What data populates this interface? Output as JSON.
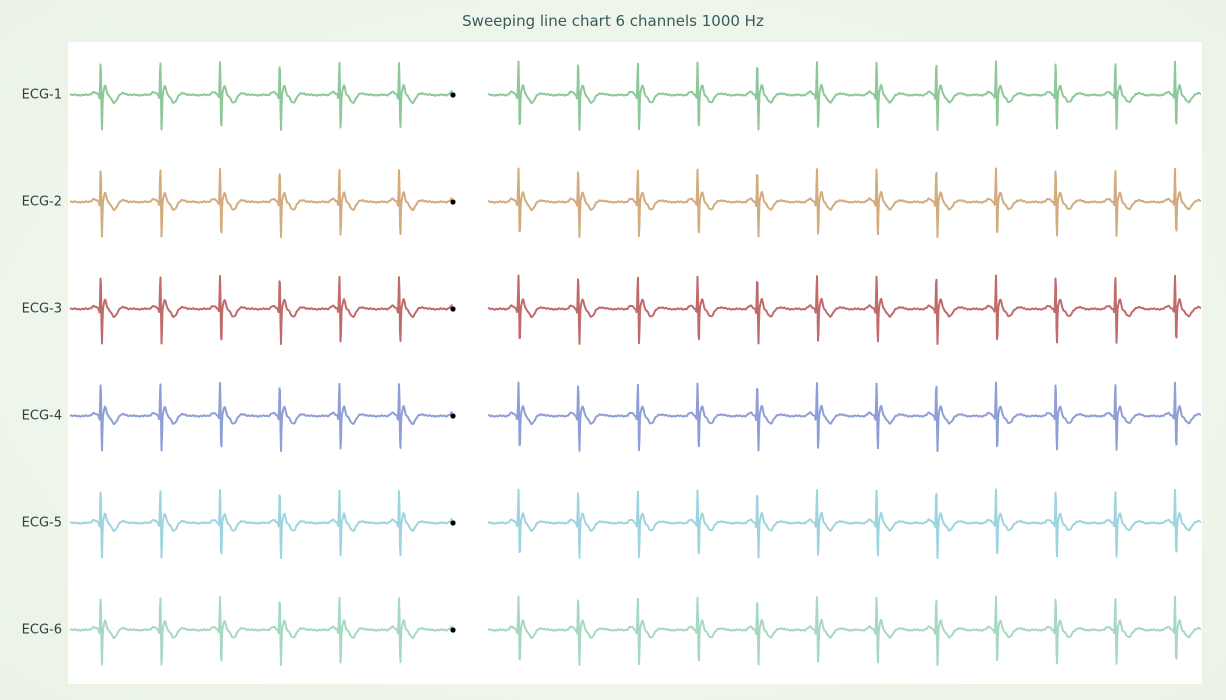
{
  "title": "Sweeping line chart 6 channels 1000 Hz",
  "chart_data": {
    "type": "line",
    "title": "Sweeping line chart 6 channels 1000 Hz",
    "sample_rate_hz": 1000,
    "sweeping": true,
    "grid": false,
    "legend": "none",
    "beat_interval_ms": 1000,
    "time_window_ms": 19000,
    "sweep_position_ms": 6450,
    "channels": [
      {
        "name": "ECG-1",
        "color": "#8ec89a"
      },
      {
        "name": "ECG-2",
        "color": "#d2ab7e"
      },
      {
        "name": "ECG-3",
        "color": "#c06a6a"
      },
      {
        "name": "ECG-4",
        "color": "#8f9ed6"
      },
      {
        "name": "ECG-5",
        "color": "#9ed4e0"
      },
      {
        "name": "ECG-6",
        "color": "#a6d8c2"
      }
    ]
  }
}
